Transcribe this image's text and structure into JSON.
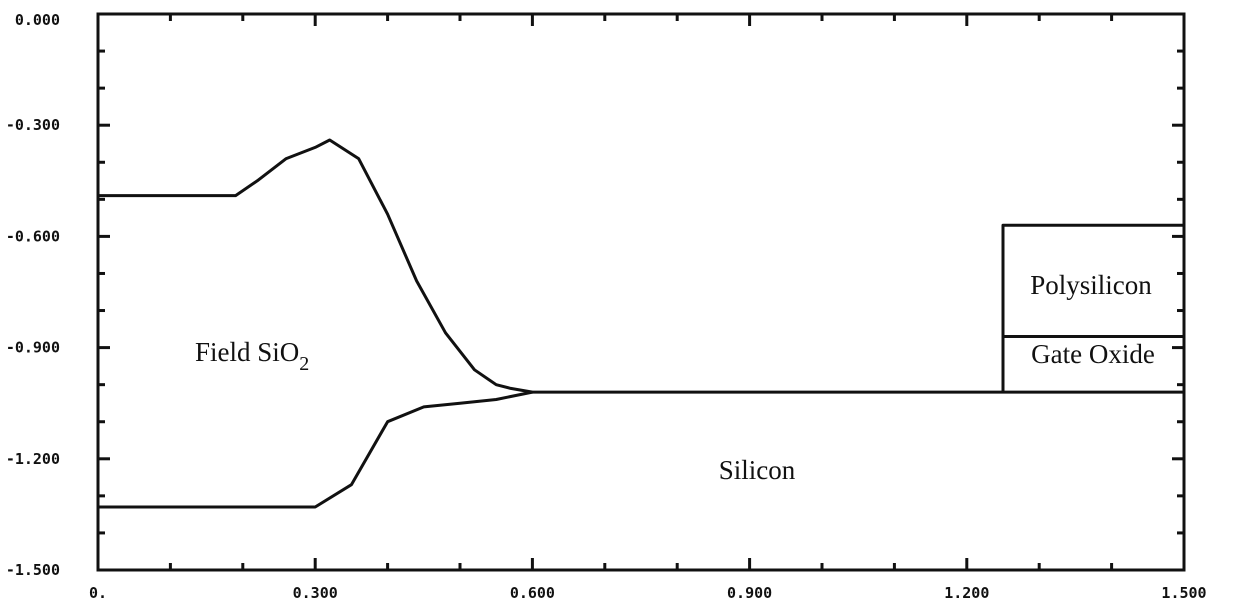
{
  "chart_data": {
    "type": "line",
    "title": "",
    "xlabel": "",
    "ylabel": "",
    "xlim": [
      0,
      1.5
    ],
    "ylim": [
      -1.5,
      0
    ],
    "x_ticks": [
      0,
      0.3,
      0.6,
      0.9,
      1.2,
      1.5
    ],
    "x_tick_labels": [
      "0.",
      "0.300",
      "0.600",
      "0.900",
      "1.200",
      "1.500"
    ],
    "y_ticks": [
      0,
      -0.3,
      -0.6,
      -0.9,
      -1.2,
      -1.5
    ],
    "y_tick_labels": [
      "0.000",
      "-0.300",
      "-0.600",
      "-0.900",
      "-1.200",
      "-1.500"
    ],
    "grid": false,
    "series": [
      {
        "x": [
          0,
          0.19,
          0.22,
          0.26,
          0.3,
          0.32,
          0.36,
          0.4,
          0.44,
          0.48,
          0.52,
          0.55,
          0.57,
          0.6,
          1.5
        ],
        "y": [
          -0.49,
          -0.49,
          -0.45,
          -0.39,
          -0.36,
          -0.34,
          -0.39,
          -0.54,
          -0.72,
          -0.86,
          -0.96,
          -1.0,
          -1.01,
          -1.02,
          -1.02
        ]
      },
      {
        "x": [
          0,
          0.3,
          0.35,
          0.4,
          0.45,
          0.5,
          0.55,
          0.6
        ],
        "y": [
          -1.33,
          -1.33,
          -1.27,
          -1.1,
          -1.06,
          -1.05,
          -1.04,
          -1.02
        ]
      },
      {
        "x": [
          1.25,
          1.25,
          1.5,
          1.5
        ],
        "y": [
          -1.02,
          -0.57,
          -0.57,
          -1.02
        ]
      },
      {
        "x": [
          1.25,
          1.5
        ],
        "y": [
          -0.87,
          -0.87
        ]
      }
    ],
    "annotations": {
      "field_oxide": "Field SiO",
      "field_oxide_subscript": "2",
      "polysilicon": "Polysilicon",
      "gate_oxide": "Gate Oxide",
      "silicon": "Silicon"
    }
  }
}
